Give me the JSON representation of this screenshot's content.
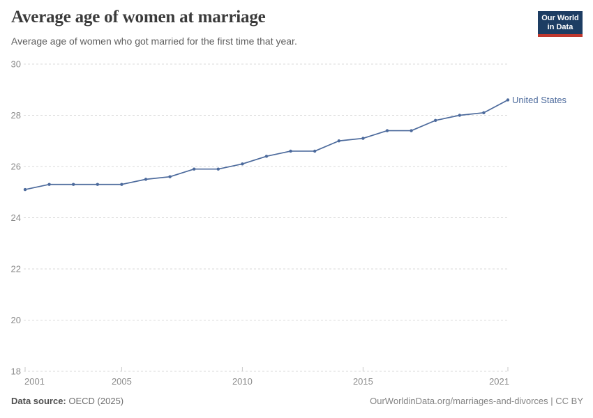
{
  "header": {
    "title": "Average age of women at marriage",
    "subtitle": "Average age of women who got married for the first time that year.",
    "logo": {
      "line1": "Our World",
      "line2": "in Data",
      "bg_color": "#1d3d63",
      "accent_color": "#c0382e"
    }
  },
  "chart_data": {
    "type": "line",
    "title": "Average age of women at marriage",
    "subtitle": "Average age of women who got married for the first time that year.",
    "x": [
      2001,
      2002,
      2003,
      2004,
      2005,
      2006,
      2007,
      2008,
      2009,
      2010,
      2011,
      2012,
      2013,
      2014,
      2015,
      2016,
      2017,
      2018,
      2019,
      2020,
      2021
    ],
    "series": [
      {
        "name": "United States",
        "color": "#4C6A9C",
        "values": [
          25.1,
          25.3,
          25.3,
          25.3,
          25.3,
          25.5,
          25.6,
          25.9,
          25.9,
          26.1,
          26.4,
          26.6,
          26.6,
          27.0,
          27.1,
          27.4,
          27.4,
          27.8,
          28.0,
          28.1,
          28.6
        ]
      }
    ],
    "xlim": [
      2001,
      2021
    ],
    "ylim": [
      18,
      30
    ],
    "x_ticks": [
      2001,
      2005,
      2010,
      2015,
      2021
    ],
    "y_ticks": [
      18,
      20,
      22,
      24,
      26,
      28,
      30
    ],
    "grid": "horizontal-dashed",
    "legend_position": "end-of-line"
  },
  "footer": {
    "source_label": "Data source:",
    "source_value": "OECD (2025)",
    "credit": "OurWorldinData.org/marriages-and-divorces | CC BY"
  }
}
